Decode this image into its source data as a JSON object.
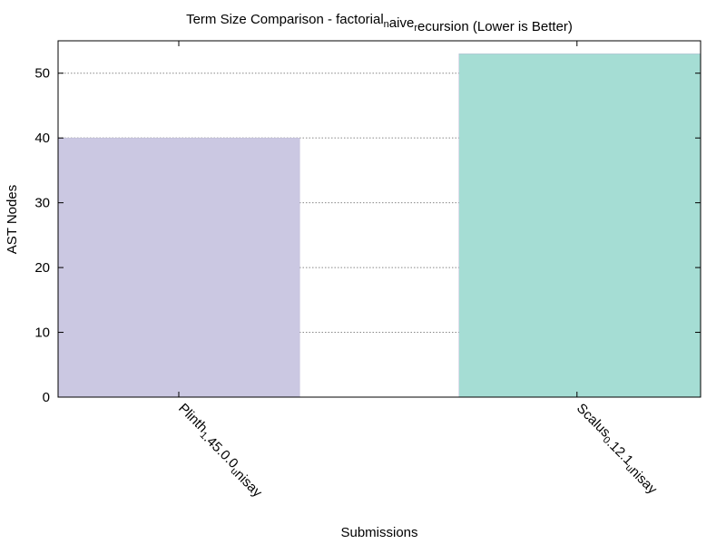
{
  "chart_data": {
    "type": "bar",
    "title": {
      "parts": [
        {
          "text": "Term Size Comparison - factorial",
          "sub": false
        },
        {
          "text": "n",
          "sub": true
        },
        {
          "text": "aive",
          "sub": false
        },
        {
          "text": "r",
          "sub": true
        },
        {
          "text": "ecursion (Lower is Better)",
          "sub": false
        }
      ]
    },
    "xlabel": "Submissions",
    "ylabel": "AST Nodes",
    "ylim": [
      0,
      55
    ],
    "yticks": [
      0,
      10,
      20,
      30,
      40,
      50
    ],
    "grid": true,
    "categories": [
      {
        "label_parts": [
          {
            "text": "Plinth",
            "sub": false
          },
          {
            "text": "1",
            "sub": true
          },
          {
            "text": ".45.0.0",
            "sub": false
          },
          {
            "text": "u",
            "sub": true
          },
          {
            "text": "nisay",
            "sub": false
          }
        ]
      },
      {
        "label_parts": [
          {
            "text": "Scalus",
            "sub": false
          },
          {
            "text": "0",
            "sub": true
          },
          {
            "text": ".12.1",
            "sub": false
          },
          {
            "text": "u",
            "sub": true
          },
          {
            "text": "nisay",
            "sub": false
          }
        ]
      }
    ],
    "values": [
      40,
      53
    ],
    "colors": [
      "#cbc8e2",
      "#a5ddd4"
    ]
  }
}
